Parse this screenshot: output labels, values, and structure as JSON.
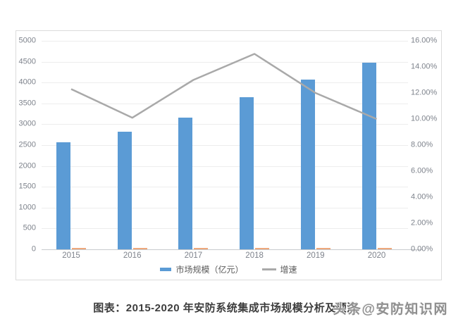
{
  "chart_data": {
    "type": "bar",
    "combo": "bar+line",
    "title": "图表：2015-2020 年安防系统集成市场规模分析及预测",
    "categories": [
      "2015",
      "2016",
      "2017",
      "2018",
      "2019",
      "2020"
    ],
    "series": [
      {
        "name": "市场规模（亿元）",
        "type": "bar",
        "axis": "left",
        "color": "#5b9bd5",
        "values": [
          2570,
          2815,
          3160,
          3645,
          4070,
          4480
        ]
      },
      {
        "name": "增速",
        "type": "line",
        "axis": "right",
        "color": "#a9a9a9",
        "unit": "%",
        "values": [
          12.3,
          10.1,
          13.0,
          15.0,
          12.0,
          10.0
        ]
      }
    ],
    "near_zero_baseline_series": {
      "color": "#eda77b",
      "values": [
        0,
        0,
        0,
        0,
        0,
        0
      ]
    },
    "left_axis": {
      "min": 0,
      "max": 5000,
      "step": 500,
      "tick_labels": [
        "5000",
        "4500",
        "4000",
        "3500",
        "3000",
        "2500",
        "2000",
        "1500",
        "1000",
        "500",
        "0"
      ]
    },
    "right_axis": {
      "min": 0,
      "max": 16,
      "step": 2,
      "tick_labels": [
        "16.00%",
        "14.00%",
        "12.00%",
        "10.00%",
        "8.00%",
        "6.00%",
        "4.00%",
        "2.00%",
        "0.00%"
      ]
    },
    "legend": [
      {
        "label": "市场规模（亿元）",
        "swatch": "bar",
        "color": "#5b9bd5"
      },
      {
        "label": "增速",
        "swatch": "line",
        "color": "#a9a9a9"
      }
    ],
    "grid": true,
    "legend_position": "bottom"
  },
  "watermark": {
    "text": "头条@安防知识网"
  }
}
